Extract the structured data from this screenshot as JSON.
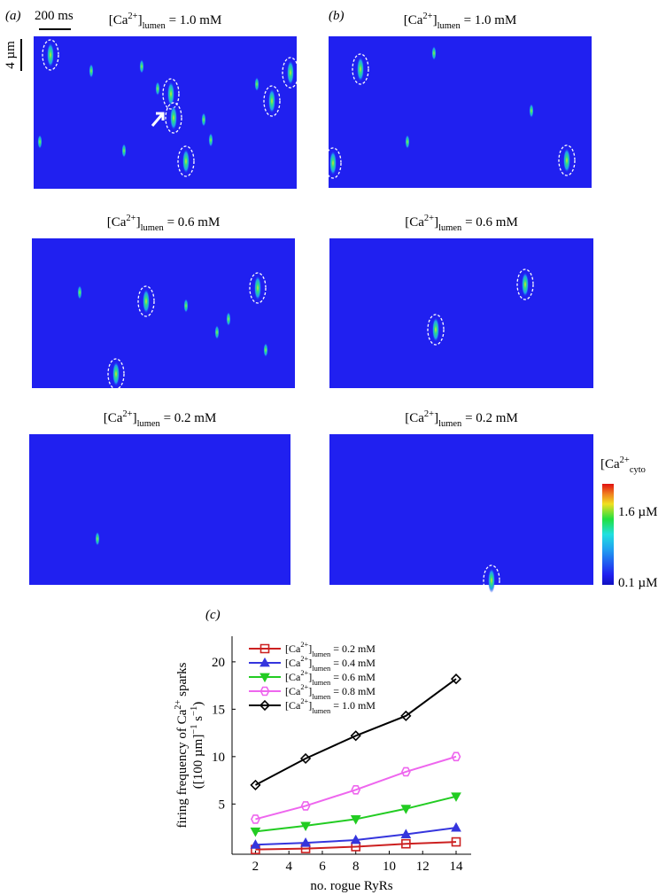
{
  "panel_labels": [
    "(a)",
    "(b)",
    "(c)"
  ],
  "scale_bars": {
    "time": "200 ms",
    "space": "4 µm"
  },
  "heatmaps": {
    "a": [
      "[Ca2+]lumen = 1.0 mM",
      "[Ca2+]lumen = 0.6 mM",
      "[Ca2+]lumen = 0.2 mM"
    ],
    "b": [
      "[Ca2+]lumen = 1.0 mM",
      "[Ca2+]lumen = 0.6 mM",
      "[Ca2+]lumen = 0.2 mM"
    ]
  },
  "colorbar": {
    "title": "[Ca2+cyto",
    "max_label": "1.6 µM",
    "min_label": "0.1 µM"
  },
  "chart_data": {
    "type": "line",
    "xlabel": "no. rogue RyRs",
    "ylabel": [
      "firing frequency of Ca2+ sparks",
      "([100 µm]−1 s−1)"
    ],
    "x": [
      2,
      5,
      8,
      11,
      14
    ],
    "series": [
      {
        "name": "[Ca2+]lumen = 0.2 mM",
        "color": "#cc2020",
        "marker": "square",
        "values": [
          0.2,
          0.3,
          0.5,
          0.8,
          1.0
        ]
      },
      {
        "name": "[Ca2+]lumen = 0.4 mM",
        "color": "#3535dd",
        "marker": "triangle-up",
        "values": [
          0.7,
          0.9,
          1.2,
          1.8,
          2.5
        ]
      },
      {
        "name": "[Ca2+]lumen = 0.6 mM",
        "color": "#22cc22",
        "marker": "triangle-down",
        "values": [
          2.1,
          2.7,
          3.4,
          4.5,
          5.8
        ]
      },
      {
        "name": "[Ca2+]lumen = 0.8 mM",
        "color": "#ee66ee",
        "marker": "hexagon",
        "values": [
          3.4,
          4.8,
          6.5,
          8.4,
          10.0
        ]
      },
      {
        "name": "[Ca2+]lumen = 1.0 mM",
        "color": "#000000",
        "marker": "diamond",
        "values": [
          7.0,
          9.8,
          12.2,
          14.3,
          18.2
        ]
      }
    ],
    "xlim": [
      0.6,
      14.9
    ],
    "ylim": [
      -0.3,
      22.7
    ],
    "xticks": [
      2,
      4,
      6,
      8,
      10,
      12,
      14
    ],
    "yticks": [
      5,
      10,
      15,
      20
    ]
  }
}
